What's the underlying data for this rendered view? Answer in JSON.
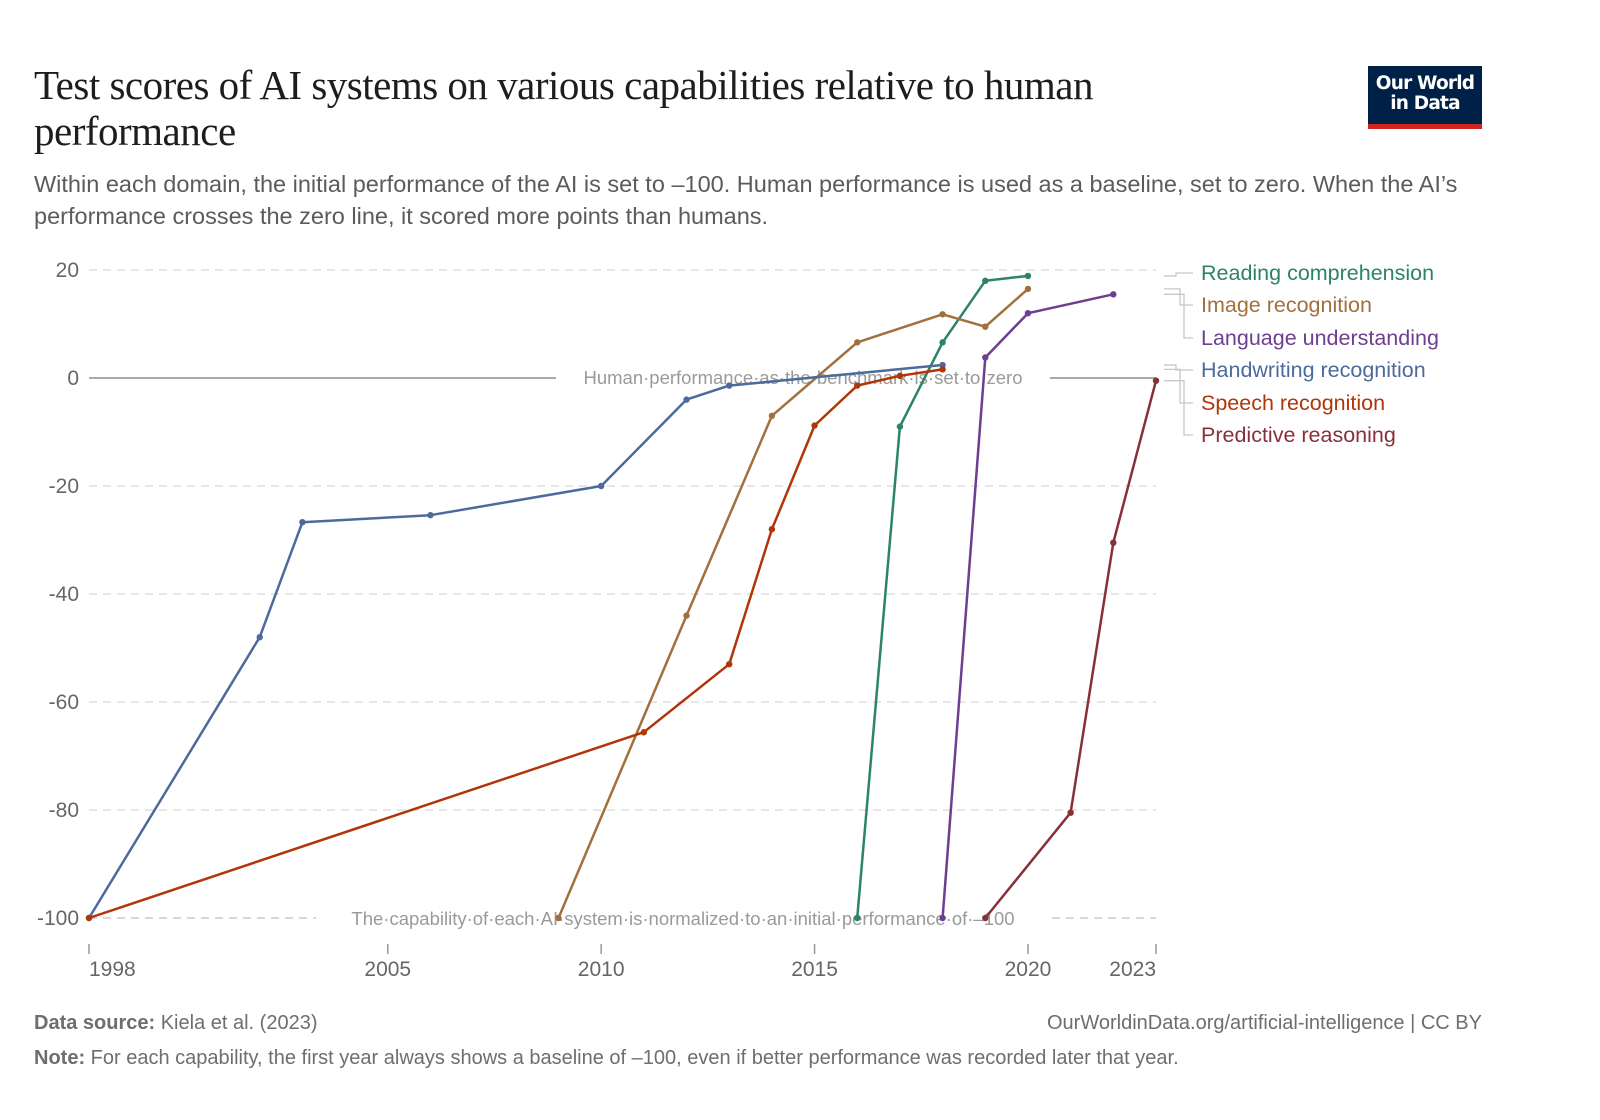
{
  "header": {
    "title": "Test scores of AI systems on various capabilities relative to human performance",
    "subtitle": "Within each domain, the initial performance of the AI is set to –100. Human performance is used as a baseline, set to zero. When the AI’s performance crosses the zero line, it scored more points than humans.",
    "logo_line1": "Our World",
    "logo_line2": "in Data",
    "logo_bg": "#002147",
    "logo_accent": "#ce261e"
  },
  "footer": {
    "source_label": "Data source:",
    "source_value": "Kiela et al. (2023)",
    "note_label": "Note:",
    "note_value": "For each capability, the first year always shows a baseline of –100, even if better performance was recorded later that year.",
    "url_license": "OurWorldinData.org/artificial-intelligence | CC BY"
  },
  "chart_data": {
    "type": "line",
    "title": "Test scores of AI systems on various capabilities relative to human performance",
    "xlabel": "",
    "ylabel": "",
    "xlim": [
      1998,
      2023
    ],
    "ylim": [
      -100,
      20
    ],
    "x_ticks": [
      1998,
      2005,
      2010,
      2015,
      2020,
      2023
    ],
    "y_ticks": [
      20,
      0,
      -20,
      -40,
      -60,
      -80,
      -100
    ],
    "grid": "horizontal-dashed",
    "legend_placement": "right",
    "annotations": {
      "zero_line": "Human performance as the benchmark is set to zero",
      "baseline_line": "The capability of each AI system is normalized to an initial performance of –100"
    },
    "series": [
      {
        "name": "Reading comprehension",
        "color": "#2c8465",
        "x": [
          2016,
          2017,
          2018,
          2019,
          2020
        ],
        "values": [
          -100,
          -9,
          6.6,
          18,
          18.9
        ]
      },
      {
        "name": "Image recognition",
        "color": "#a2703d",
        "x": [
          2009,
          2012,
          2014,
          2016,
          2018,
          2019,
          2020
        ],
        "values": [
          -100,
          -44,
          -7,
          6.6,
          11.8,
          9.5,
          16.5
        ]
      },
      {
        "name": "Language understanding",
        "color": "#6d3e91",
        "x": [
          2018,
          2019,
          2020,
          2022
        ],
        "values": [
          -100,
          3.8,
          12,
          15.5
        ]
      },
      {
        "name": "Handwriting recognition",
        "color": "#4c6a9c",
        "x": [
          1998,
          2002,
          2003,
          2006,
          2010,
          2012,
          2013,
          2018
        ],
        "values": [
          -100,
          -48,
          -26.7,
          -25.4,
          -20,
          -4,
          -1.4,
          2.4
        ]
      },
      {
        "name": "Speech recognition",
        "color": "#b13507",
        "x": [
          1998,
          2011,
          2013,
          2014,
          2015,
          2016,
          2017,
          2018
        ],
        "values": [
          -100,
          -65.6,
          -53,
          -28,
          -8.8,
          -1.4,
          0.4,
          1.6
        ]
      },
      {
        "name": "Predictive reasoning",
        "color": "#883039",
        "x": [
          2019,
          2021,
          2022,
          2023
        ],
        "values": [
          -100,
          -80.5,
          -30.5,
          -0.5
        ]
      }
    ]
  }
}
